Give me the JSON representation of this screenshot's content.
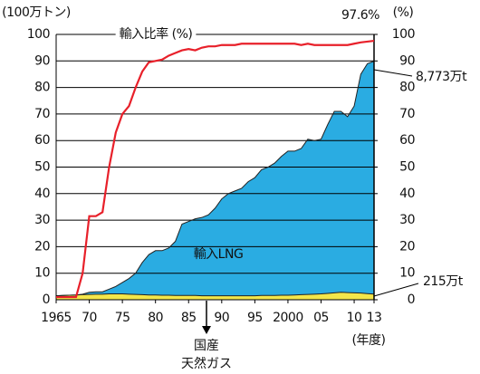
{
  "chart_data": {
    "type": "stacked-area-line",
    "ylabel": "(100万トン)",
    "y2label": "(%)",
    "xlabel": "(年度)",
    "x": [
      1965,
      1966,
      1967,
      1968,
      1969,
      1970,
      1971,
      1972,
      1973,
      1974,
      1975,
      1976,
      1977,
      1978,
      1979,
      1980,
      1981,
      1982,
      1983,
      1984,
      1985,
      1986,
      1987,
      1988,
      1989,
      1990,
      1991,
      1992,
      1993,
      1994,
      1995,
      1996,
      1997,
      1998,
      1999,
      2000,
      2001,
      2002,
      2003,
      2004,
      2005,
      2006,
      2007,
      2008,
      2009,
      2010,
      2011,
      2012,
      2013
    ],
    "xlim": [
      1965,
      2013
    ],
    "xticks": [
      1965,
      {
        "value": 1970,
        "label": "70"
      },
      {
        "value": 1975,
        "label": "75"
      },
      {
        "value": 1980,
        "label": "80"
      },
      {
        "value": 1985,
        "label": "85"
      },
      {
        "value": 1990,
        "label": "90"
      },
      {
        "value": 1995,
        "label": "95"
      },
      2000,
      {
        "value": 2005,
        "label": "05"
      },
      {
        "value": 2010,
        "label": "10"
      },
      {
        "value": 2013,
        "label": "13"
      }
    ],
    "ylim": [
      0,
      100
    ],
    "yticks": [
      0,
      10,
      20,
      30,
      40,
      50,
      60,
      70,
      80,
      90,
      100
    ],
    "y2lim": [
      0,
      100
    ],
    "y2ticks": [
      0,
      10,
      20,
      30,
      40,
      50,
      60,
      70,
      80,
      90,
      100
    ],
    "grid": true,
    "series": [
      {
        "name": "国産\n天然ガス",
        "kind": "area",
        "color": "#f3e64a",
        "values": [
          1.5,
          1.6,
          1.7,
          1.8,
          1.9,
          2.0,
          2.1,
          2.1,
          2.2,
          2.2,
          2.2,
          2.1,
          2.0,
          1.9,
          1.8,
          1.8,
          1.7,
          1.7,
          1.6,
          1.6,
          1.6,
          1.6,
          1.5,
          1.5,
          1.5,
          1.5,
          1.5,
          1.5,
          1.5,
          1.5,
          1.5,
          1.6,
          1.6,
          1.6,
          1.7,
          1.7,
          1.8,
          1.9,
          2.0,
          2.1,
          2.2,
          2.4,
          2.6,
          2.8,
          2.7,
          2.6,
          2.5,
          2.3,
          2.15
        ],
        "value_labels": [
          null,
          null,
          null,
          null,
          null,
          null,
          null,
          null,
          null,
          null,
          null,
          null,
          null,
          null,
          null,
          null,
          null,
          null,
          null,
          null,
          null,
          null,
          null,
          null,
          null,
          null,
          null,
          null,
          null,
          null,
          null,
          null,
          null,
          null,
          null,
          null,
          null,
          null,
          null,
          null,
          null,
          null,
          null,
          null,
          null,
          null,
          null,
          null,
          "215万t"
        ]
      },
      {
        "name": "輸入LNG",
        "kind": "area",
        "color": "#2aace2",
        "values": [
          0,
          0,
          0,
          0,
          0.2,
          0.8,
          0.9,
          0.9,
          1.8,
          2.8,
          4.3,
          5.9,
          8,
          12.1,
          15.2,
          16.7,
          16.8,
          17.8,
          20.4,
          26.9,
          27.9,
          28.9,
          29.5,
          30.5,
          33,
          36.5,
          38.5,
          39.5,
          40.5,
          43,
          44.5,
          47.4,
          48.4,
          49.9,
          52.3,
          54.3,
          54.2,
          55.1,
          58.5,
          57.9,
          58.3,
          63.6,
          68.4,
          68.2,
          66.3,
          70.4,
          82.5,
          86.7,
          87.73
        ],
        "value_labels": [
          null,
          null,
          null,
          null,
          null,
          null,
          null,
          null,
          null,
          null,
          null,
          null,
          null,
          null,
          null,
          null,
          null,
          null,
          null,
          null,
          null,
          null,
          null,
          null,
          null,
          null,
          null,
          null,
          null,
          null,
          null,
          null,
          null,
          null,
          null,
          null,
          null,
          null,
          null,
          null,
          null,
          null,
          null,
          null,
          null,
          null,
          null,
          null,
          "8,773万t"
        ]
      },
      {
        "name": "輸入比率 (%)",
        "kind": "line",
        "axis": "y2",
        "color": "#e8202a",
        "values": [
          1,
          1,
          1,
          1,
          10,
          31.5,
          31.5,
          33,
          50,
          63,
          70,
          73,
          80,
          86,
          89.5,
          90,
          90.5,
          92,
          93,
          94,
          94.5,
          94,
          95,
          95.5,
          95.5,
          96,
          96,
          96,
          96.5,
          96.5,
          96.5,
          96.5,
          96.5,
          96.5,
          96.5,
          96.5,
          96.5,
          96,
          96.5,
          96,
          96,
          96,
          96,
          96,
          96,
          96.5,
          97,
          97.3,
          97.6
        ],
        "value_labels": [
          null,
          null,
          null,
          null,
          null,
          null,
          null,
          null,
          null,
          null,
          null,
          null,
          null,
          null,
          null,
          null,
          null,
          null,
          null,
          null,
          null,
          null,
          null,
          null,
          null,
          null,
          null,
          null,
          null,
          null,
          null,
          null,
          null,
          null,
          null,
          null,
          null,
          null,
          null,
          null,
          null,
          null,
          null,
          null,
          null,
          null,
          null,
          null,
          "97.6%"
        ]
      }
    ]
  }
}
